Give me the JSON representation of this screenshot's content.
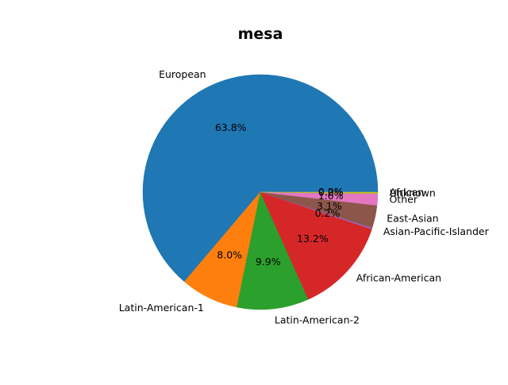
{
  "chart_data": {
    "type": "pie",
    "title": "mesa",
    "start_angle_deg": 0,
    "direction": "counterclockwise",
    "slices": [
      {
        "label": "European",
        "value": 63.8,
        "pct_text": "63.8%",
        "color": "#1f77b4"
      },
      {
        "label": "Latin-American-1",
        "value": 8.0,
        "pct_text": "8.0%",
        "color": "#ff7f0e"
      },
      {
        "label": "Latin-American-2",
        "value": 9.9,
        "pct_text": "9.9%",
        "color": "#2ca02c"
      },
      {
        "label": "African-American",
        "value": 13.2,
        "pct_text": "13.2%",
        "color": "#d62728"
      },
      {
        "label": "Asian-Pacific-Islander",
        "value": 0.2,
        "pct_text": "0.2%",
        "color": "#9467bd"
      },
      {
        "label": "East-Asian",
        "value": 3.1,
        "pct_text": "3.1%",
        "color": "#8c564b"
      },
      {
        "label": "Other",
        "value": 1.6,
        "pct_text": "1.6%",
        "color": "#e377c2"
      },
      {
        "label": "Unknown",
        "value": 0.0,
        "pct_text": "0.0%",
        "color": "#7f7f7f"
      },
      {
        "label": "African",
        "value": 0.2,
        "pct_text": "0.2%",
        "color": "#bcbd22"
      }
    ]
  }
}
